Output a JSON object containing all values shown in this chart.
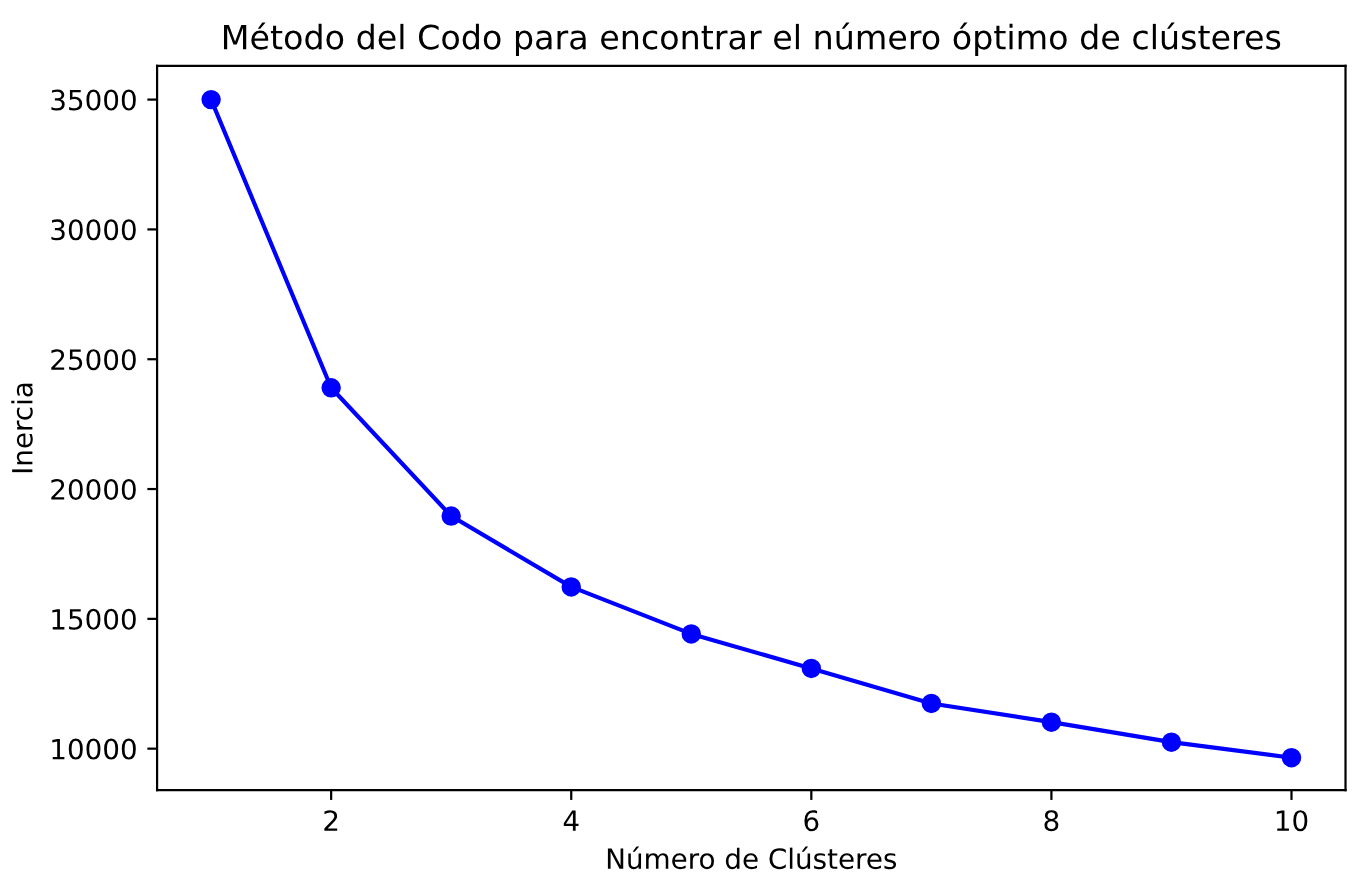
{
  "chart_data": {
    "type": "line",
    "title": "Método del Codo para encontrar el número óptimo de clústeres",
    "xlabel": "Número de Clústeres",
    "ylabel": "Inercia",
    "x": [
      1,
      2,
      3,
      4,
      5,
      6,
      7,
      8,
      9,
      10
    ],
    "series": [
      {
        "color": "#0000ff",
        "values": [
          35000,
          23900,
          18960,
          16230,
          14420,
          13090,
          11740,
          11020,
          10250,
          9650
        ]
      }
    ],
    "xlim": [
      0.55,
      10.45
    ],
    "ylim": [
      8400,
      36300
    ],
    "xticks": [
      2,
      4,
      6,
      8,
      10
    ],
    "yticks": [
      10000,
      15000,
      20000,
      25000,
      30000,
      35000
    ],
    "marker": "circle",
    "line_style": "solid",
    "grid": false,
    "legend": false
  }
}
